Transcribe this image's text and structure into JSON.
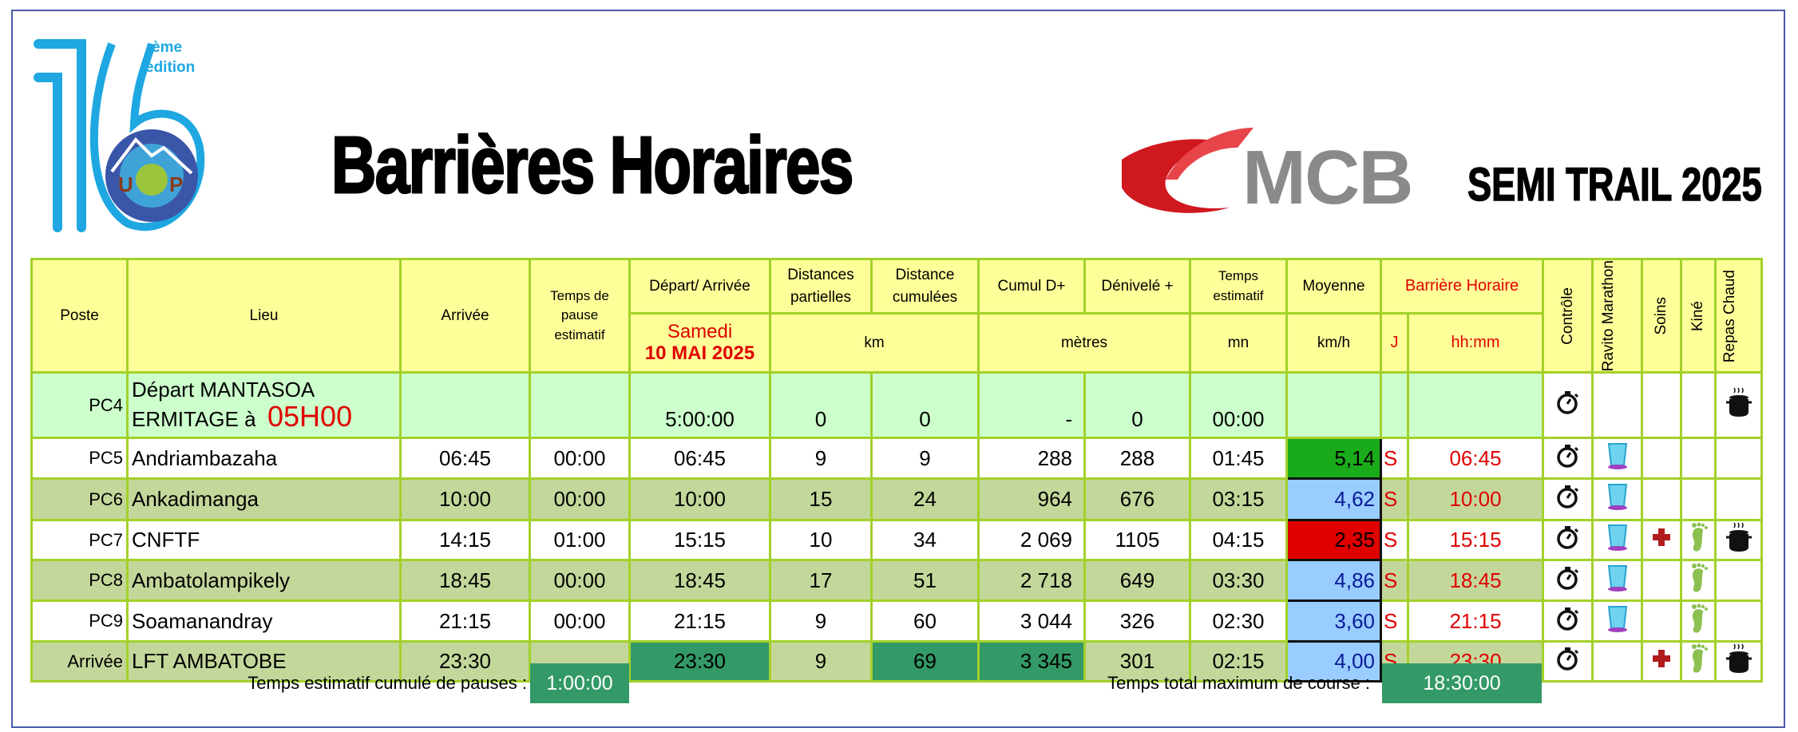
{
  "header": {
    "edition_number": "16",
    "edition_suffix": "ème",
    "edition_word": "edition",
    "logo_text": "Ultra Trail Ô Plateaux Madagascar UTOP",
    "title": "Barrières Horaires",
    "sponsor": "MCB",
    "race": "SEMI TRAIL 2025"
  },
  "columns": {
    "poste": "Poste",
    "lieu": "Lieu",
    "arrivee": "Arrivée",
    "pause": "Temps de pause estimatif",
    "depart": "Départ/ Arrivée",
    "day": "Samedi",
    "date": "10 MAI 2025",
    "dist_part": "Distances partielles",
    "dist_cum": "Distance cumulées",
    "km": "km",
    "cumul": "Cumul D+",
    "deniv": "Dénivelé +",
    "metres": "mètres",
    "temps": "Temps estimatif",
    "mn": "mn",
    "moyenne": "Moyenne",
    "kmh": "km/h",
    "barriere": "Barrière Horaire",
    "j": "J",
    "hhmm": "hh:mm",
    "controle": "Contrôle",
    "ravito": "Ravito Marathon",
    "soins": "Soins",
    "kine": "Kiné",
    "repas": "Repas Chaud"
  },
  "start_row": {
    "poste": "PC4",
    "lieu_line1": "Départ MANTASOA",
    "lieu_line2": "ERMITAGE à",
    "start_time": "05H00",
    "depart": "5:00:00",
    "dist_part": "0",
    "dist_cum": "0",
    "cumul": "-",
    "deniv": "0",
    "temps": "00:00",
    "icons": {
      "controle": "stopwatch-icon",
      "ravito": "",
      "soins": "",
      "kine": "",
      "repas": "hot-pot-icon"
    }
  },
  "rows": [
    {
      "poste": "PC5",
      "lieu": "Andriambazaha",
      "arrivee": "06:45",
      "pause": "00:00",
      "depart": "06:45",
      "dist_part": "9",
      "dist_cum": "9",
      "cumul": "288",
      "deniv": "288",
      "temps": "01:45",
      "moyenne": "5,14",
      "moyenne_color": "#1aab1a",
      "j": "S",
      "barriere": "06:45",
      "bg": "#ffffff",
      "icons": {
        "controle": true,
        "ravito": true,
        "soins": false,
        "kine": false,
        "repas": false
      }
    },
    {
      "poste": "PC6",
      "lieu": "Ankadimanga",
      "arrivee": "10:00",
      "pause": "00:00",
      "depart": "10:00",
      "dist_part": "15",
      "dist_cum": "24",
      "cumul": "964",
      "deniv": "676",
      "temps": "03:15",
      "moyenne": "4,62",
      "moyenne_color": "#99ccff",
      "j": "S",
      "barriere": "10:00",
      "bg": "#c4d79b",
      "icons": {
        "controle": true,
        "ravito": true,
        "soins": false,
        "kine": false,
        "repas": false
      }
    },
    {
      "poste": "PC7",
      "lieu": "CNFTF",
      "arrivee": "14:15",
      "pause": "01:00",
      "depart": "15:15",
      "dist_part": "10",
      "dist_cum": "34",
      "cumul": "2 069",
      "deniv": "1105",
      "temps": "04:15",
      "moyenne": "2,35",
      "moyenne_color": "#e00000",
      "j": "S",
      "barriere": "15:15",
      "bg": "#ffffff",
      "icons": {
        "controle": true,
        "ravito": true,
        "soins": true,
        "kine": true,
        "repas": true
      }
    },
    {
      "poste": "PC8",
      "lieu": "Ambatolampikely",
      "arrivee": "18:45",
      "pause": "00:00",
      "depart": "18:45",
      "dist_part": "17",
      "dist_cum": "51",
      "cumul": "2 718",
      "deniv": "649",
      "temps": "03:30",
      "moyenne": "4,86",
      "moyenne_color": "#99ccff",
      "j": "S",
      "barriere": "18:45",
      "bg": "#c4d79b",
      "icons": {
        "controle": true,
        "ravito": true,
        "soins": false,
        "kine": true,
        "repas": false
      }
    },
    {
      "poste": "PC9",
      "lieu": "Soamanandray",
      "arrivee": "21:15",
      "pause": "00:00",
      "depart": "21:15",
      "dist_part": "9",
      "dist_cum": "60",
      "cumul": "3 044",
      "deniv": "326",
      "temps": "02:30",
      "moyenne": "3,60",
      "moyenne_color": "#99ccff",
      "j": "S",
      "barriere": "21:15",
      "bg": "#ffffff",
      "icons": {
        "controle": true,
        "ravito": true,
        "soins": false,
        "kine": true,
        "repas": false
      }
    },
    {
      "poste": "Arrivée",
      "lieu": "LFT AMBATOBE",
      "arrivee": "23:30",
      "pause": "",
      "depart": "23:30",
      "dist_part": "9",
      "dist_cum": "69",
      "cumul": "3 345",
      "deniv": "301",
      "temps": "02:15",
      "moyenne": "4,00",
      "moyenne_color": "#99ccff",
      "j": "S",
      "barriere": "23:30",
      "bg": "#c4d79b",
      "highlight": true,
      "icons": {
        "controle": true,
        "ravito": false,
        "soins": true,
        "kine": true,
        "repas": true
      }
    }
  ],
  "footer": {
    "pauses_label": "Temps estimatif cumulé de pauses :",
    "pauses_value": "1:00:00",
    "total_label": "Temps total maximum de course :",
    "total_value": "18:30:00"
  },
  "colors": {
    "header_bg": "#ffff99",
    "grid": "#a3d12a",
    "start_row_bg": "#ccffcc",
    "alt_row_bg": "#c4d79b",
    "highlight": "#339966",
    "barrier_text": "#e00000",
    "logo_blue": "#1ea7e1",
    "brand_red": "#d0181f"
  }
}
